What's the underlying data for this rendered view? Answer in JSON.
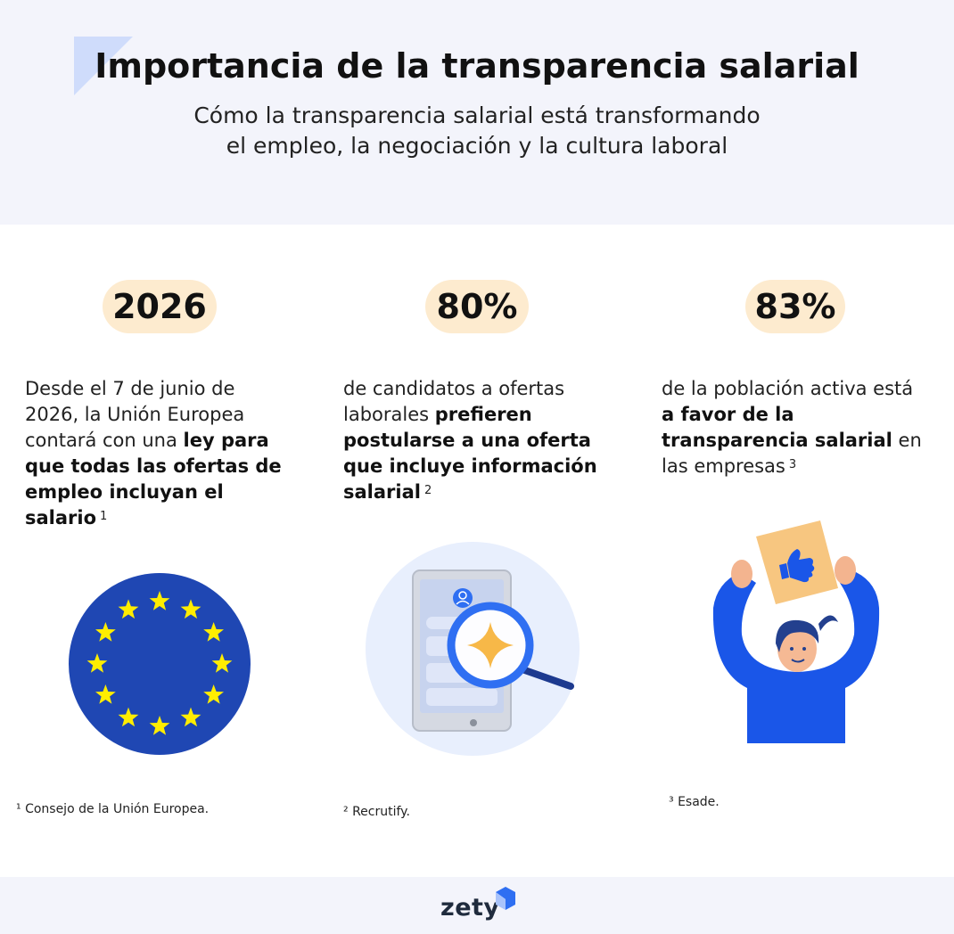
{
  "header": {
    "title": "Importancia de la transparencia salarial",
    "subtitle_line1": "Cómo la transparencia salarial está transformando",
    "subtitle_line2": "el empleo, la negociación y la cultura laboral"
  },
  "stats": [
    {
      "badge": "2026",
      "text_parts": [
        {
          "t": "Desde el 7 de junio de 2026, la Unión Europea contará con una ",
          "b": false
        },
        {
          "t": "ley para que todas las ofertas de empleo incluyan el salario",
          "b": true
        }
      ],
      "ref": "1",
      "footnote": "¹ Consejo de la Unión Europea."
    },
    {
      "badge": "80%",
      "text_parts": [
        {
          "t": "de candidatos a ofertas laborales ",
          "b": false
        },
        {
          "t": "prefieren postularse a una oferta que incluye información salarial",
          "b": true
        }
      ],
      "ref": "2",
      "footnote": "² Recrutify."
    },
    {
      "badge": "83%",
      "text_parts": [
        {
          "t": "de la población activa está ",
          "b": false
        },
        {
          "t": "a favor de la transparencia salarial",
          "b": true
        },
        {
          "t": " en las empresas",
          "b": false
        }
      ],
      "ref": "3",
      "footnote": "³ Esade."
    }
  ],
  "illustrations": [
    "eu-flag-icon",
    "phone-magnifier-icon",
    "person-thumbs-up-icon"
  ],
  "colors": {
    "header_bg": "#f3f4fb",
    "badge_bg": "#fdebcf",
    "eu_blue": "#1f47b3",
    "eu_star": "#ffed00",
    "accent_blue": "#1a56e8",
    "logo_blue": "#2f6ff2"
  },
  "footer": {
    "logo_text": "zety"
  }
}
